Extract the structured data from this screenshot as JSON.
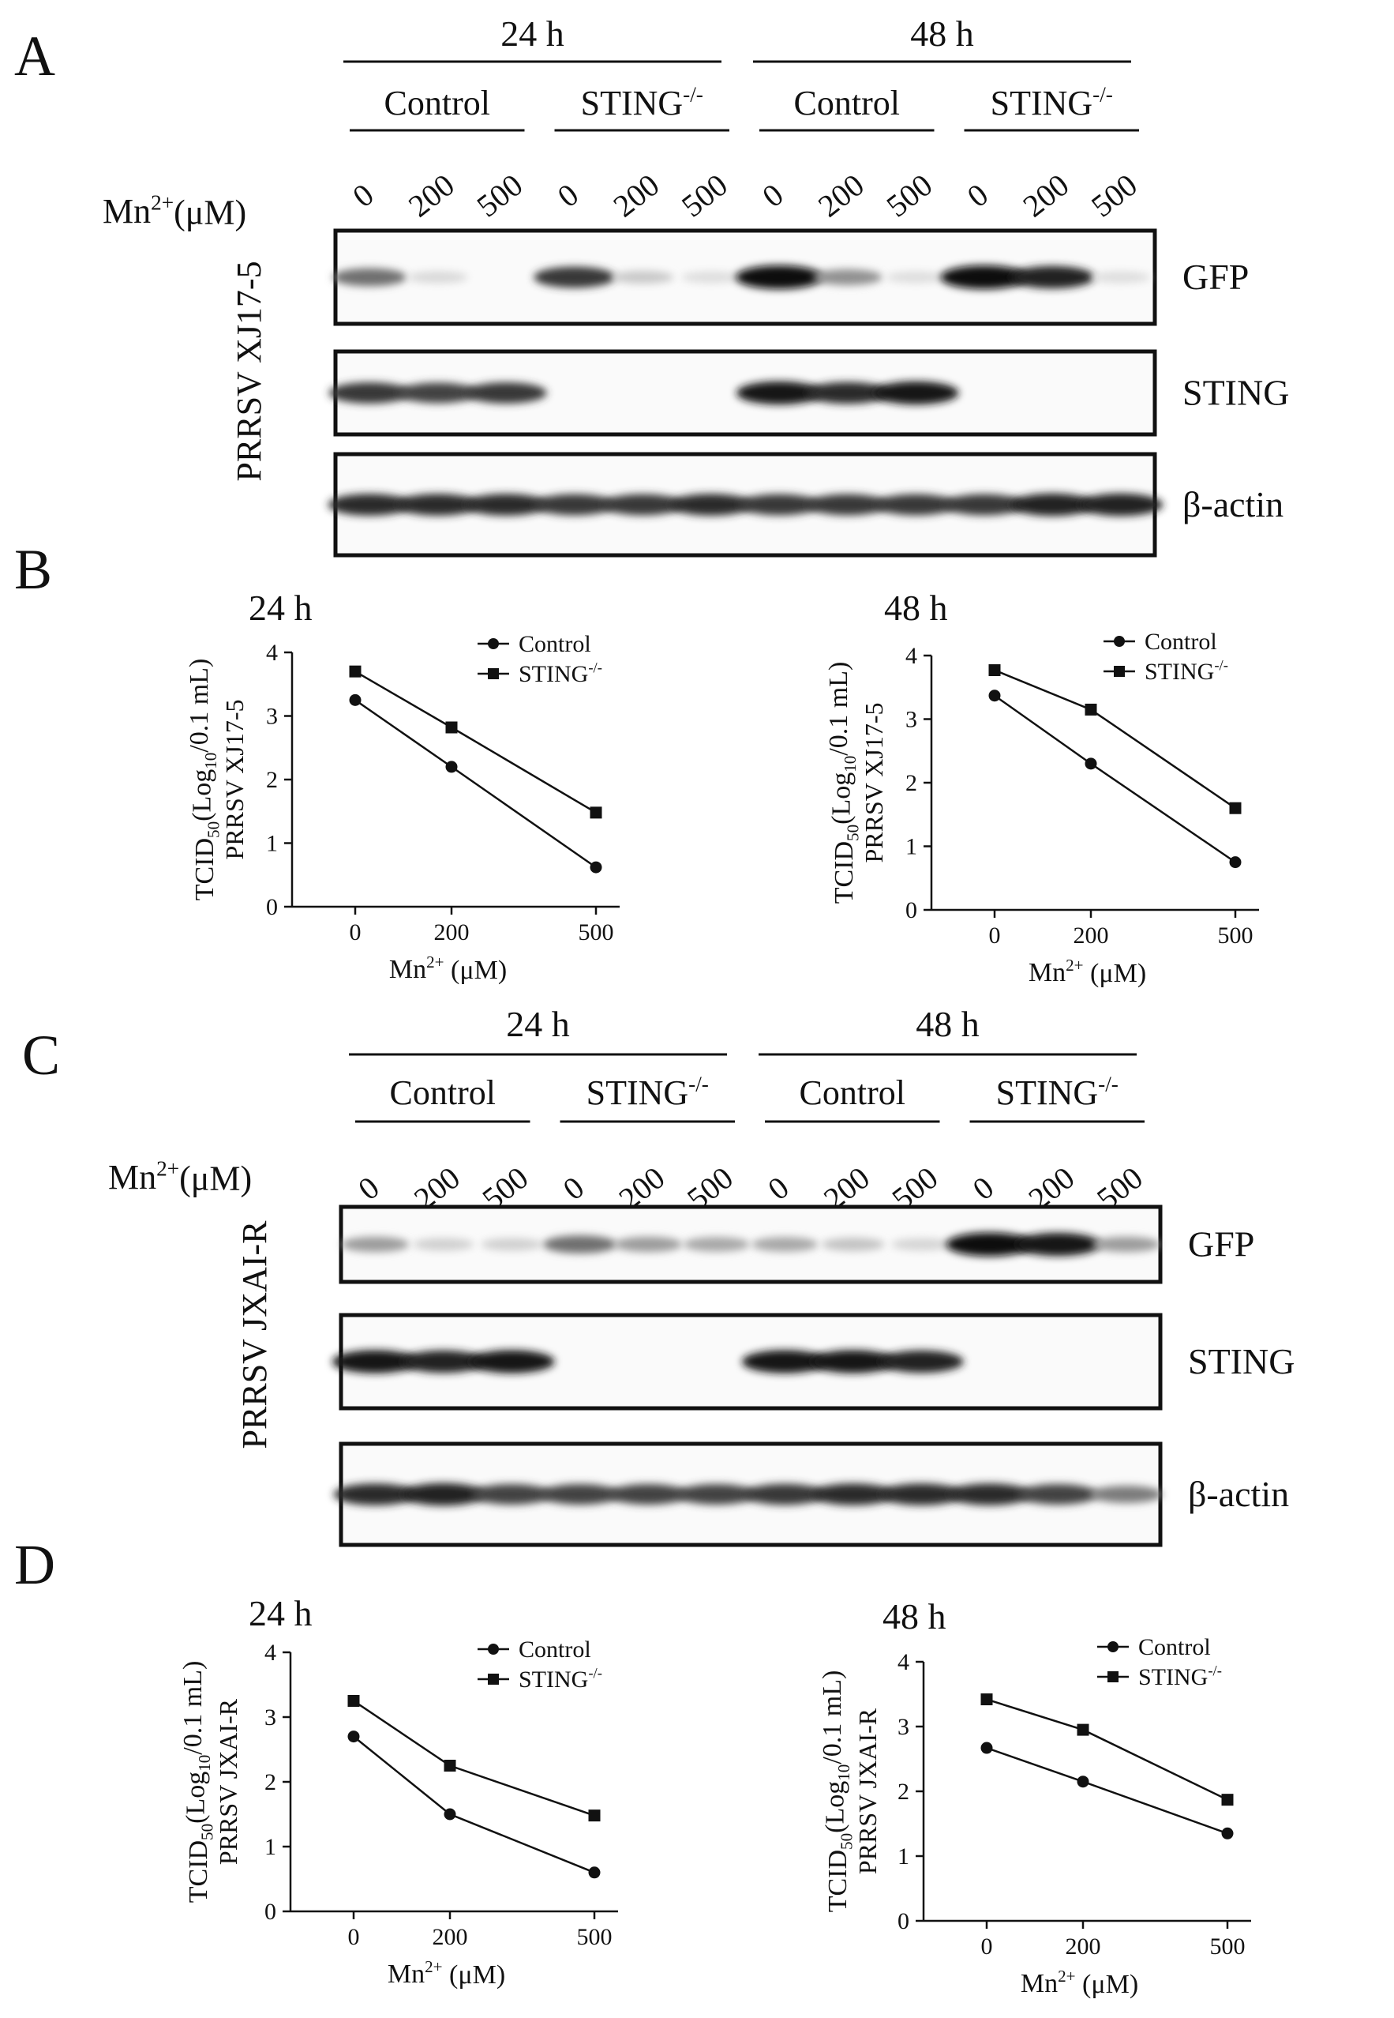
{
  "panels": [
    {
      "letter": "A"
    },
    {
      "letter": "B"
    },
    {
      "letter": "C"
    },
    {
      "letter": "D"
    }
  ],
  "blot_common": {
    "time_labels": [
      "24 h",
      "48 h"
    ],
    "group_labels": [
      "Control",
      "STING",
      "Control",
      "STING"
    ],
    "ko_superscript": "-/-",
    "treatment_label_prefix": "Mn",
    "treatment_label_super": "2+",
    "treatment_label_suffix": "(μM)",
    "doses": [
      "0",
      "200",
      "500",
      "0",
      "200",
      "500",
      "0",
      "200",
      "500",
      "0",
      "200",
      "500"
    ],
    "band_labels": [
      "GFP",
      "STING",
      "β-actin"
    ]
  },
  "blots": [
    {
      "panel": "A",
      "strain_label": "PRRSV XJ17-5",
      "band_intensity": {
        "GFP": [
          0.55,
          0.08,
          0.0,
          0.8,
          0.15,
          0.06,
          1.0,
          0.4,
          0.06,
          1.0,
          0.9,
          0.06
        ],
        "STING": [
          0.8,
          0.75,
          0.8,
          0.0,
          0.0,
          0.0,
          0.95,
          0.85,
          0.95,
          0.0,
          0.0,
          0.0
        ],
        "β-actin": [
          0.85,
          0.85,
          0.85,
          0.8,
          0.8,
          0.85,
          0.8,
          0.8,
          0.8,
          0.8,
          0.9,
          0.9
        ]
      }
    },
    {
      "panel": "C",
      "strain_label": "PRRSV JXAI-R",
      "band_intensity": {
        "GFP": [
          0.35,
          0.12,
          0.12,
          0.55,
          0.35,
          0.3,
          0.3,
          0.18,
          0.1,
          1.0,
          0.95,
          0.35
        ],
        "STING": [
          0.95,
          0.9,
          0.95,
          0.0,
          0.0,
          0.0,
          0.95,
          0.95,
          0.9,
          0.0,
          0.0,
          0.0
        ],
        "β-actin": [
          0.85,
          0.9,
          0.75,
          0.75,
          0.75,
          0.75,
          0.8,
          0.85,
          0.85,
          0.85,
          0.75,
          0.5
        ]
      }
    }
  ],
  "chart_common": {
    "ylabel_line1_a": "TCID",
    "ylabel_line1_sub": "50",
    "ylabel_line1_b": "(Log",
    "ylabel_line1_sub2": "10",
    "ylabel_line1_c": "/0.1 mL)",
    "xlabel_prefix": "Mn",
    "xlabel_super": "2+",
    "xlabel_suffix": " (μM)",
    "legend_control": "Control",
    "legend_sting": "STING",
    "legend_sting_super": "-/-"
  },
  "chart_data": [
    {
      "type": "line",
      "panel": "B",
      "title": "24 h",
      "ylabel_line2": "PRRSV XJ17-5",
      "x": [
        0,
        200,
        500
      ],
      "ylim": [
        0,
        4
      ],
      "yticks": [
        0,
        1,
        2,
        3,
        4
      ],
      "series": [
        {
          "name": "Control",
          "values": [
            3.25,
            2.2,
            0.62
          ]
        },
        {
          "name": "STING-/-",
          "values": [
            3.7,
            2.82,
            1.48
          ]
        }
      ]
    },
    {
      "type": "line",
      "panel": "B",
      "title": "48 h",
      "ylabel_line2": "PRRSV XJ17-5",
      "x": [
        0,
        200,
        500
      ],
      "ylim": [
        0,
        4
      ],
      "yticks": [
        0,
        1,
        2,
        3,
        4
      ],
      "series": [
        {
          "name": "Control",
          "values": [
            3.37,
            2.3,
            0.75
          ]
        },
        {
          "name": "STING-/-",
          "values": [
            3.77,
            3.15,
            1.6
          ]
        }
      ]
    },
    {
      "type": "line",
      "panel": "D",
      "title": "24 h",
      "ylabel_line2": "PRRSV JXAI-R",
      "x": [
        0,
        200,
        500
      ],
      "ylim": [
        0,
        4
      ],
      "yticks": [
        0,
        1,
        2,
        3,
        4
      ],
      "series": [
        {
          "name": "Control",
          "values": [
            2.7,
            1.5,
            0.6
          ]
        },
        {
          "name": "STING-/-",
          "values": [
            3.25,
            2.25,
            1.48
          ]
        }
      ]
    },
    {
      "type": "line",
      "panel": "D",
      "title": "48 h",
      "ylabel_line2": "PRRSV JXAI-R",
      "x": [
        0,
        200,
        500
      ],
      "ylim": [
        0,
        4
      ],
      "yticks": [
        0,
        1,
        2,
        3,
        4
      ],
      "series": [
        {
          "name": "Control",
          "values": [
            2.67,
            2.15,
            1.35
          ]
        },
        {
          "name": "STING-/-",
          "values": [
            3.42,
            2.95,
            1.87
          ]
        }
      ]
    }
  ]
}
